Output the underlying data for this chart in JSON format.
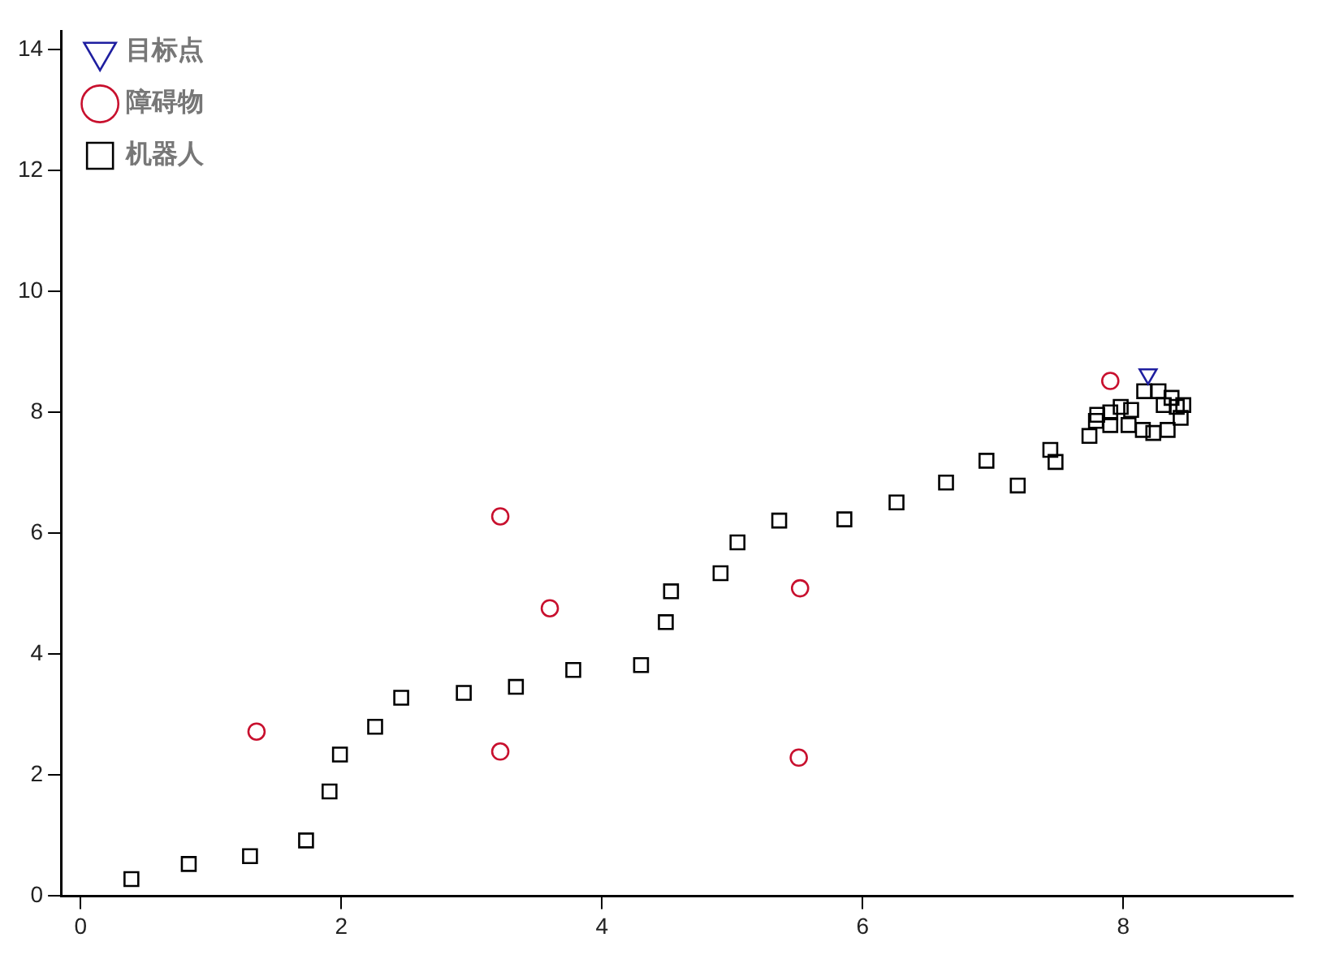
{
  "chart_data": {
    "type": "scatter",
    "grid": false,
    "legend": "top left",
    "xlim": [
      -0.15,
      9.3
    ],
    "xticks": [
      0,
      2,
      4,
      6,
      8
    ],
    "ylim": [
      0,
      14.3
    ],
    "yticks": [
      0,
      2,
      4,
      6,
      8,
      10,
      12,
      14
    ],
    "series": [
      {
        "name": "目标点",
        "color": "#1f1fa0",
        "marker": "triangle",
        "x": [
          8.19
        ],
        "values": [
          8.63
        ]
      },
      {
        "name": "障碍物",
        "color": "#c8102e",
        "marker": "circle",
        "x": [
          1.35,
          3.22,
          3.6,
          3.22,
          5.52,
          5.51,
          7.9
        ],
        "values": [
          2.72,
          6.28,
          4.76,
          2.39,
          5.09,
          2.29,
          8.52
        ]
      },
      {
        "name": "机器人",
        "color": "#000000",
        "marker": "square",
        "x": [
          0.39,
          0.83,
          1.3,
          1.73,
          1.91,
          1.99,
          2.26,
          2.46,
          2.94,
          3.34,
          3.78,
          4.3,
          4.49,
          4.53,
          4.91,
          5.04,
          5.36,
          5.86,
          6.26,
          6.64,
          6.95,
          7.19,
          7.44,
          7.48,
          7.74,
          7.79,
          7.8,
          7.9,
          7.9,
          7.98,
          8.04,
          8.06,
          8.15,
          8.16,
          8.23,
          8.27,
          8.31,
          8.34,
          8.37,
          8.41,
          8.44,
          8.46
        ],
        "values": [
          0.28,
          0.53,
          0.66,
          0.92,
          1.73,
          2.34,
          2.8,
          3.28,
          3.36,
          3.46,
          3.74,
          3.82,
          4.53,
          5.04,
          5.34,
          5.85,
          6.21,
          6.23,
          6.51,
          6.84,
          7.2,
          6.79,
          7.38,
          7.18,
          7.61,
          7.86,
          7.96,
          7.79,
          8.0,
          8.09,
          7.79,
          8.04,
          7.71,
          8.35,
          7.66,
          8.35,
          8.12,
          7.71,
          8.24,
          8.09,
          7.91,
          8.12
        ]
      }
    ]
  }
}
